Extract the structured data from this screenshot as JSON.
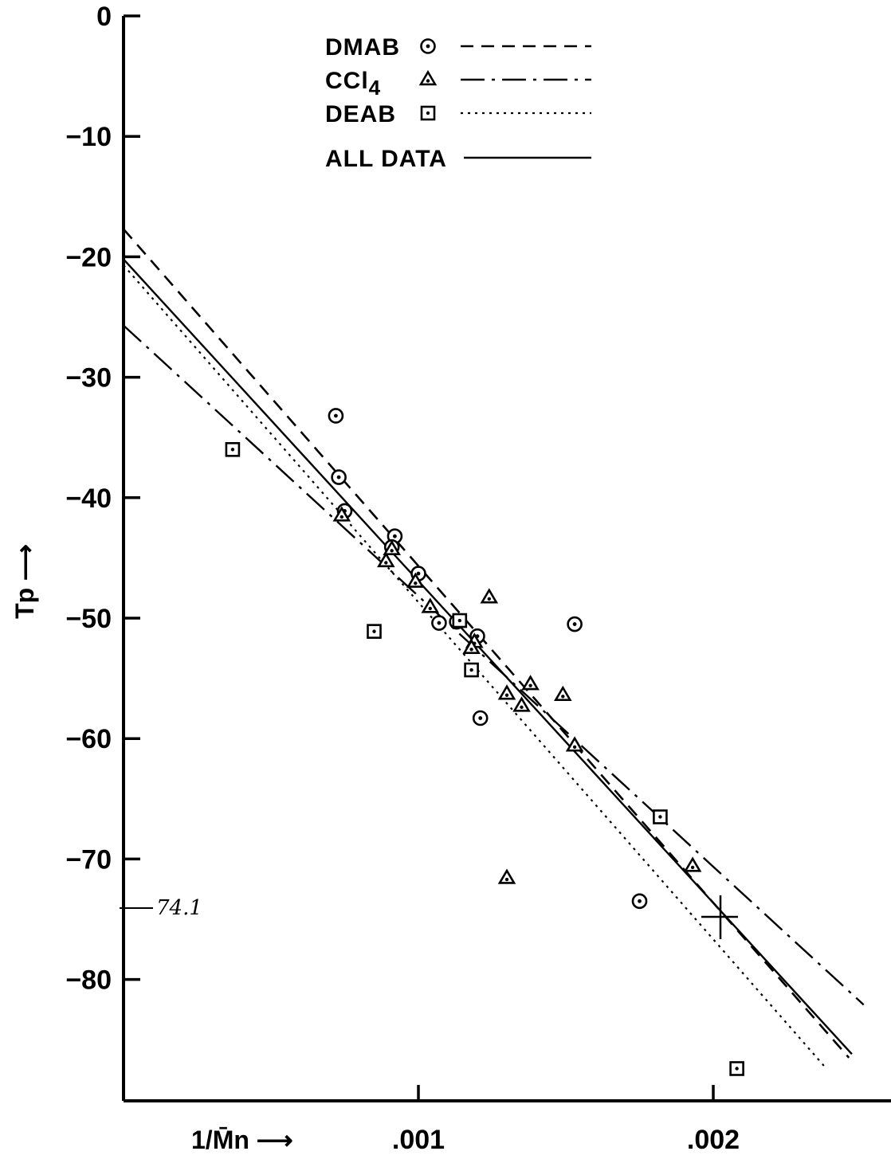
{
  "chart_data": {
    "type": "scatter",
    "title": "",
    "xlabel": "1/M̄n ⟶",
    "ylabel": "Tp ⟶",
    "xlim": [
      0,
      0.0026
    ],
    "ylim": [
      -90,
      0
    ],
    "xticks": [
      {
        "value": 0.001,
        "label": ".001"
      },
      {
        "value": 0.002,
        "label": ".002"
      }
    ],
    "yticks": [
      {
        "value": 0,
        "label": "0"
      },
      {
        "value": -10,
        "label": "-10"
      },
      {
        "value": -20,
        "label": "-20"
      },
      {
        "value": -30,
        "label": "-30"
      },
      {
        "value": -40,
        "label": "-40"
      },
      {
        "value": -50,
        "label": "-50"
      },
      {
        "value": -60,
        "label": "-60"
      },
      {
        "value": -70,
        "label": "-70"
      },
      {
        "value": -80,
        "label": "-80"
      }
    ],
    "grid": false,
    "legend_position": "top-center",
    "series": [
      {
        "name": "DMAB",
        "marker": "circle-dot",
        "line_style": "dashed",
        "points": [
          [
            0.00072,
            -33.2
          ],
          [
            0.00073,
            -38.3
          ],
          [
            0.00075,
            -41.1
          ],
          [
            0.00092,
            -43.2
          ],
          [
            0.00091,
            -44.1
          ],
          [
            0.001,
            -46.3
          ],
          [
            0.00107,
            -50.4
          ],
          [
            0.00113,
            -50.3
          ],
          [
            0.0012,
            -51.5
          ],
          [
            0.00121,
            -58.3
          ],
          [
            0.00153,
            -50.5
          ],
          [
            0.00175,
            -73.5
          ]
        ],
        "fit": [
          [
            0,
            -17.7
          ],
          [
            0.00246,
            -86.5
          ]
        ]
      },
      {
        "name": "CCl4",
        "marker": "triangle-dot",
        "line_style": "long-dash-dot",
        "points": [
          [
            0.00074,
            -41.5
          ],
          [
            0.00089,
            -45.3
          ],
          [
            0.00091,
            -44.3
          ],
          [
            0.00099,
            -47.0
          ],
          [
            0.00104,
            -49.1
          ],
          [
            0.00119,
            -52.0
          ],
          [
            0.00118,
            -52.5
          ],
          [
            0.00124,
            -48.3
          ],
          [
            0.0013,
            -56.3
          ],
          [
            0.00135,
            -57.3
          ],
          [
            0.00138,
            -55.5
          ],
          [
            0.00149,
            -56.4
          ],
          [
            0.00153,
            -60.6
          ],
          [
            0.0013,
            -71.6
          ],
          [
            0.00193,
            -70.6
          ]
        ],
        "fit": [
          [
            0,
            -25.7
          ],
          [
            0.00251,
            -82.1
          ]
        ]
      },
      {
        "name": "DEAB",
        "marker": "square-dot",
        "line_style": "dotted",
        "points": [
          [
            0.00037,
            -36.0
          ],
          [
            0.00085,
            -51.1
          ],
          [
            0.00114,
            -50.2
          ],
          [
            0.00118,
            -54.3
          ],
          [
            0.00182,
            -66.5
          ],
          [
            0.00208,
            -87.4
          ]
        ],
        "fit": [
          [
            0,
            -20.7
          ],
          [
            0.00238,
            -87.3
          ]
        ]
      },
      {
        "name": "ALL DATA",
        "marker": "none",
        "line_style": "solid",
        "points": [],
        "fit": [
          [
            0,
            -20.2
          ],
          [
            0.00247,
            -86.2
          ]
        ]
      }
    ],
    "annotations": [
      {
        "text": "74.1",
        "note": "handwritten"
      }
    ]
  }
}
